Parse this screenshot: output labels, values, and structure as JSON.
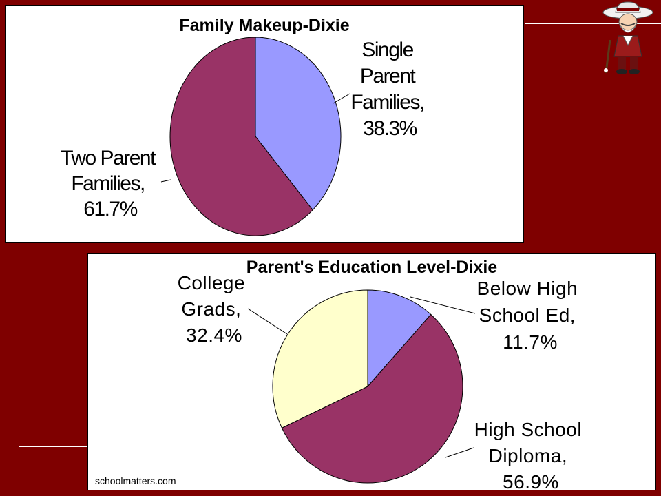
{
  "source": "schoolmatters.com",
  "colors": {
    "background": "#7f0000",
    "periwinkle": "#9999ff",
    "maroon": "#993366",
    "cream": "#ffffcc"
  },
  "chart_data": [
    {
      "type": "pie",
      "title": "Family Makeup-Dixie",
      "slices": [
        {
          "label": "Single Parent Families,",
          "value": 38.3,
          "value_label": "38.3%",
          "color": "#9999ff"
        },
        {
          "label": "Two Parent Families,",
          "value": 61.7,
          "value_label": "61.7%",
          "color": "#993366"
        }
      ],
      "label_lines": {
        "slice_0": [
          "Single",
          "Parent",
          "Families,",
          "38.3%"
        ],
        "slice_1": [
          "Two Parent",
          "Families,",
          "61.7%"
        ]
      }
    },
    {
      "type": "pie",
      "title": "Parent's Education Level-Dixie",
      "slices": [
        {
          "label": "Below High School Ed,",
          "value": 11.7,
          "value_label": "11.7%",
          "color": "#9999ff"
        },
        {
          "label": "High School Diploma,",
          "value": 56.9,
          "value_label": "56.9%",
          "color": "#993366"
        },
        {
          "label": "College Grads,",
          "value": 32.4,
          "value_label": "32.4%",
          "color": "#ffffcc"
        }
      ],
      "label_lines": {
        "slice_0": [
          "Below High",
          "School Ed,",
          "11.7%"
        ],
        "slice_1": [
          "High School",
          "Diploma,",
          "56.9%"
        ],
        "slice_2": [
          "College",
          "Grads,",
          "32.4%"
        ]
      }
    }
  ]
}
